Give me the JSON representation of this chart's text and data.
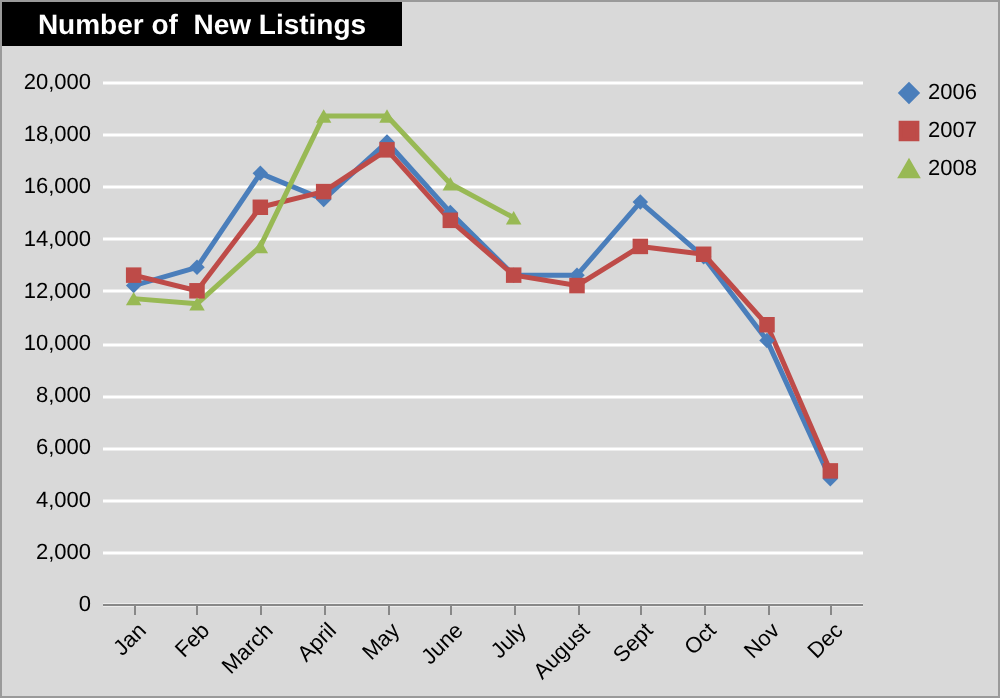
{
  "chart_data": {
    "type": "line",
    "title": "Number of  New Listings",
    "categories": [
      "Jan",
      "Feb",
      "March",
      "April",
      "May",
      "June",
      "July",
      "August",
      "Sept",
      "Oct",
      "Nov",
      "Dec"
    ],
    "series": [
      {
        "name": "2006",
        "color": "#4a7ebb",
        "marker": "diamond",
        "values": [
          12200,
          12900,
          16500,
          15500,
          17700,
          15000,
          12600,
          12600,
          15400,
          13300,
          10100,
          4800
        ]
      },
      {
        "name": "2007",
        "color": "#be4b48",
        "marker": "square",
        "values": [
          12600,
          12000,
          15200,
          15800,
          17400,
          14700,
          12600,
          12200,
          13700,
          13400,
          10700,
          5100
        ]
      },
      {
        "name": "2008",
        "color": "#98b954",
        "marker": "triangle",
        "values": [
          11700,
          11500,
          13700,
          18700,
          18700,
          16100,
          14800,
          null,
          null,
          null,
          null,
          null
        ]
      }
    ],
    "ylim": [
      0,
      20000
    ],
    "yticks": [
      0,
      {
        "value": 2000,
        "label": "2,000"
      },
      {
        "value": 4000,
        "label": "4,000"
      },
      {
        "value": 6000,
        "label": "6,000"
      },
      {
        "value": 8000,
        "label": "8,000"
      },
      {
        "value": 10000,
        "label": "10,000"
      },
      {
        "value": 12000,
        "label": "12,000"
      },
      {
        "value": 14000,
        "label": "14,000"
      },
      {
        "value": 16000,
        "label": "16,000"
      },
      {
        "value": 18000,
        "label": "18,000"
      },
      {
        "value": 20000,
        "label": "20,000"
      }
    ],
    "grid": "y",
    "legend": "right"
  }
}
